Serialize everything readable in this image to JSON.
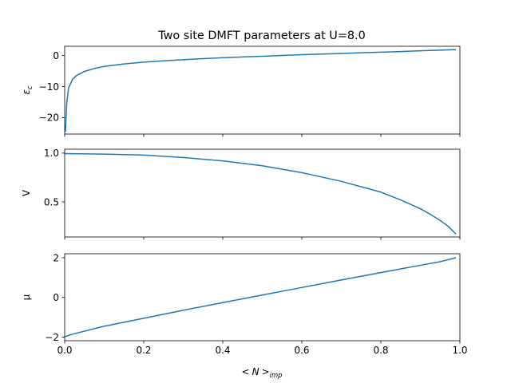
{
  "chart_data": {
    "title": "Two site DMFT parameters at U=8.0",
    "x_label": {
      "lt": "<",
      "var": "N",
      "gt": ">",
      "sub": "imp"
    },
    "x_ticks": [
      0.0,
      0.2,
      0.4,
      0.6,
      0.8,
      1.0
    ],
    "x_tick_labels": [
      "0.0",
      "0.2",
      "0.4",
      "0.6",
      "0.8",
      "1.0"
    ],
    "xlim": [
      0.0,
      1.0
    ],
    "line_color": "#1f77b4",
    "panels": [
      {
        "type": "line",
        "ylabel_main": "ε",
        "ylabel_sub": "c",
        "ylim": [
          -25.3,
          3.0
        ],
        "y_ticks": [
          0,
          -10,
          -20
        ],
        "y_tick_labels": [
          "0",
          "−10",
          "−20"
        ],
        "x": [
          0.002,
          0.005,
          0.01,
          0.02,
          0.03,
          0.05,
          0.08,
          0.1,
          0.15,
          0.2,
          0.25,
          0.3,
          0.35,
          0.4,
          0.45,
          0.5,
          0.55,
          0.6,
          0.65,
          0.7,
          0.75,
          0.8,
          0.85,
          0.9,
          0.95,
          0.99
        ],
        "y": [
          -24.5,
          -15.5,
          -10.4,
          -7.6,
          -6.4,
          -5.1,
          -4.0,
          -3.5,
          -2.7,
          -2.1,
          -1.7,
          -1.35,
          -1.0,
          -0.7,
          -0.45,
          -0.2,
          0.05,
          0.3,
          0.5,
          0.7,
          0.9,
          1.1,
          1.3,
          1.55,
          1.75,
          1.95
        ]
      },
      {
        "type": "line",
        "ylabel_main": "V",
        "ylabel_sub": "",
        "ylim": [
          0.14,
          1.04
        ],
        "y_ticks": [
          1.0,
          0.5
        ],
        "y_tick_labels": [
          "1.0",
          "0.5"
        ],
        "x": [
          0.0,
          0.1,
          0.2,
          0.3,
          0.4,
          0.5,
          0.6,
          0.7,
          0.8,
          0.85,
          0.9,
          0.93,
          0.95,
          0.97,
          0.98,
          0.99
        ],
        "y": [
          0.995,
          0.99,
          0.98,
          0.955,
          0.92,
          0.87,
          0.8,
          0.71,
          0.6,
          0.52,
          0.43,
          0.36,
          0.31,
          0.25,
          0.21,
          0.17
        ]
      },
      {
        "type": "line",
        "ylabel_main": "μ",
        "ylabel_sub": "",
        "ylim": [
          -2.18,
          2.2
        ],
        "y_ticks": [
          2,
          0,
          -2
        ],
        "y_tick_labels": [
          "2",
          "0",
          "−2"
        ],
        "x": [
          0.0,
          0.02,
          0.05,
          0.1,
          0.2,
          0.3,
          0.4,
          0.5,
          0.6,
          0.7,
          0.8,
          0.9,
          0.95,
          0.99
        ],
        "y": [
          -1.98,
          -1.85,
          -1.7,
          -1.45,
          -1.05,
          -0.65,
          -0.26,
          0.12,
          0.5,
          0.88,
          1.25,
          1.62,
          1.8,
          2.0
        ]
      }
    ]
  }
}
